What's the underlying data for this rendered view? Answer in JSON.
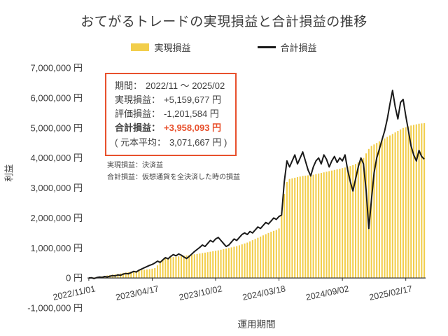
{
  "title": "おてがるトレードの実現損益と合計損益の推移",
  "legend": {
    "items": [
      {
        "label": "実現損益",
        "type": "bar",
        "color": "#F2CE4B"
      },
      {
        "label": "合計損益",
        "type": "line",
        "color": "#1a1a1a"
      }
    ]
  },
  "annotation": {
    "border_color": "#E8512D",
    "lines": [
      {
        "label": "期間：",
        "value": "2022/11 ～ 2025/02"
      },
      {
        "label": "実現損益：",
        "value": "+5,159,677 円"
      },
      {
        "label": "評価損益：",
        "value": "-1,201,584 円"
      },
      {
        "label": "合計損益：",
        "value": "+3,958,093 円",
        "emphasis": true
      },
      {
        "label": "( 元本平均：",
        "value": "3,071,667 円 )"
      }
    ],
    "footnotes": [
      "実現損益：決済益",
      "合計損益：仮想通貨を全決済した時の損益"
    ]
  },
  "chart_data": {
    "type": "combo",
    "title": "おてがるトレードの実現損益と合計損益の推移",
    "xlabel": "運用期間",
    "ylabel": "利益",
    "ylim": [
      -1000000,
      7000000
    ],
    "y_step": 1000000,
    "y_suffix": " 円",
    "grid": false,
    "x_unit": "week",
    "x_ticks": [
      {
        "index": 0,
        "label": "2022/11/01"
      },
      {
        "index": 24,
        "label": "2023/04/17"
      },
      {
        "index": 48,
        "label": "2023/10/02"
      },
      {
        "index": 72,
        "label": "2024/03/18"
      },
      {
        "index": 96,
        "label": "2024/09/02"
      },
      {
        "index": 120,
        "label": "2025/02/17"
      }
    ],
    "series": [
      {
        "name": "実現損益",
        "type": "bar",
        "color": "#F2CE4B",
        "values": [
          5000,
          10000,
          18000,
          28000,
          40000,
          55000,
          70000,
          85000,
          95000,
          110000,
          120000,
          135000,
          150000,
          165000,
          180000,
          195000,
          210000,
          225000,
          240000,
          255000,
          265000,
          275000,
          285000,
          295000,
          310000,
          330000,
          420000,
          520000,
          600000,
          650000,
          670000,
          690000,
          700000,
          710000,
          720000,
          730000,
          740000,
          750000,
          760000,
          775000,
          790000,
          800000,
          815000,
          830000,
          845000,
          860000,
          875000,
          890000,
          905000,
          920000,
          940000,
          960000,
          980000,
          1000000,
          1020000,
          1040000,
          1060000,
          1090000,
          1120000,
          1150000,
          1180000,
          1220000,
          1260000,
          1300000,
          1340000,
          1380000,
          1420000,
          1460000,
          1500000,
          1540000,
          1570000,
          1600000,
          1650000,
          2200000,
          2800000,
          3200000,
          3300000,
          3320000,
          3340000,
          3360000,
          3380000,
          3400000,
          3410000,
          3420000,
          3430000,
          3440000,
          3460000,
          3480000,
          3500000,
          3520000,
          3540000,
          3560000,
          3580000,
          3600000,
          3620000,
          3640000,
          3660000,
          3680000,
          3700000,
          3730000,
          3760000,
          3800000,
          3850000,
          3900000,
          4000000,
          4150000,
          4300000,
          4400000,
          4450000,
          4500000,
          4550000,
          4600000,
          4650000,
          4700000,
          4750000,
          4800000,
          4850000,
          4900000,
          4950000,
          5000000,
          5020000,
          5050000,
          5080000,
          5100000,
          5120000,
          5140000,
          5150000,
          5159677
        ]
      },
      {
        "name": "合計損益",
        "type": "line",
        "color": "#1a1a1a",
        "values": [
          0,
          10000,
          -20000,
          15000,
          30000,
          20000,
          50000,
          35000,
          60000,
          80000,
          70000,
          100000,
          90000,
          130000,
          150000,
          140000,
          180000,
          220000,
          200000,
          260000,
          300000,
          340000,
          380000,
          420000,
          450000,
          500000,
          560000,
          520000,
          600000,
          680000,
          640000,
          720000,
          780000,
          740000,
          800000,
          760000,
          700000,
          650000,
          720000,
          800000,
          880000,
          950000,
          1020000,
          1100000,
          1050000,
          1150000,
          1250000,
          1200000,
          1300000,
          1350000,
          1250000,
          1150000,
          1050000,
          1100000,
          1200000,
          1300000,
          1250000,
          1350000,
          1450000,
          1500000,
          1450000,
          1550000,
          1500000,
          1600000,
          1700000,
          1650000,
          1750000,
          1850000,
          1800000,
          1900000,
          2000000,
          1950000,
          2050000,
          2100000,
          3200000,
          3900000,
          3700000,
          3900000,
          4100000,
          3800000,
          4000000,
          4200000,
          3900000,
          3600000,
          3400000,
          3700000,
          3900000,
          4000000,
          3800000,
          4100000,
          3950000,
          3700000,
          3900000,
          4050000,
          3850000,
          4000000,
          3900000,
          4100000,
          3600000,
          3200000,
          2900000,
          3300000,
          3700000,
          4000000,
          3800000,
          2900000,
          1650000,
          2600000,
          3500000,
          4000000,
          4300000,
          4600000,
          4900000,
          5300000,
          5800000,
          6250000,
          5700000,
          5300000,
          5850000,
          5950000,
          5400000,
          4900000,
          4400000,
          4100000,
          3900000,
          4250000,
          4050000,
          3958093
        ]
      }
    ]
  }
}
